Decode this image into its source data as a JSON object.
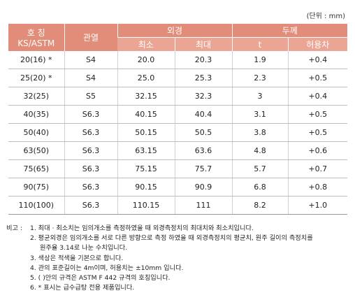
{
  "unit_label": "(단위 : mm)",
  "header": {
    "nominal_line1": "호 칭",
    "nominal_line2": "KS/ASTM",
    "series": "관열",
    "outer_diameter": "외경",
    "od_min": "최소",
    "od_max": "최대",
    "thickness": "두께",
    "t": "t",
    "tolerance": "허용차"
  },
  "rows": [
    {
      "nominal": "20(16) *",
      "series": "S4",
      "min": "20.0",
      "max": "20.3",
      "t": "1.9",
      "tol": "+0.4"
    },
    {
      "nominal": "25(20) *",
      "series": "S4",
      "min": "25.0",
      "max": "25.3",
      "t": "2.3",
      "tol": "+0.5"
    },
    {
      "nominal": "32(25)",
      "series": "S5",
      "min": "32.15",
      "max": "32.3",
      "t": "3",
      "tol": "+0.4"
    },
    {
      "nominal": "40(35)",
      "series": "S6.3",
      "min": "40.15",
      "max": "40.4",
      "t": "3.1",
      "tol": "+0.5"
    },
    {
      "nominal": "50(40)",
      "series": "S6.3",
      "min": "50.15",
      "max": "50.5",
      "t": "3.8",
      "tol": "+0.5"
    },
    {
      "nominal": "63(50)",
      "series": "S6.3",
      "min": "63.15",
      "max": "63.6",
      "t": "4.8",
      "tol": "+0.6"
    },
    {
      "nominal": "75(65)",
      "series": "S6.3",
      "min": "75.15",
      "max": "75.7",
      "t": "5.7",
      "tol": "+0.7"
    },
    {
      "nominal": "90(75)",
      "series": "S6.3",
      "min": "90.15",
      "max": "90.9",
      "t": "6.8",
      "tol": "+0.8"
    },
    {
      "nominal": "110(100)",
      "series": "S6.3",
      "min": "110.15",
      "max": "111",
      "t": "8.2",
      "tol": "+1.0"
    }
  ],
  "notes": {
    "lead": "비고 :",
    "n1": "1. 최대 · 최소치는 임의개소를 측정하였을 때 외경측정치의 최대치와 최소치입니다.",
    "n2a": "2. 평균외경은 임의개소를 서로 다른 방향으로 측정 하였을 때 외경측정치의 평균치, 원주 길이의 측정치를",
    "n2b": "원주율 3.14로 나눈 수치입니다.",
    "n3": "3. 색상은 적색을 기본으로 합니다.",
    "n4": "4. 관의 표준길이는 4m이며, 허용치는 ±10mm 입니다.",
    "n5": "5. (    )안의 규격은 ASTM F 442 규격의 호칭입니다.",
    "n6": "6. * 표시는 급수급탕 전용 제품입니다."
  }
}
